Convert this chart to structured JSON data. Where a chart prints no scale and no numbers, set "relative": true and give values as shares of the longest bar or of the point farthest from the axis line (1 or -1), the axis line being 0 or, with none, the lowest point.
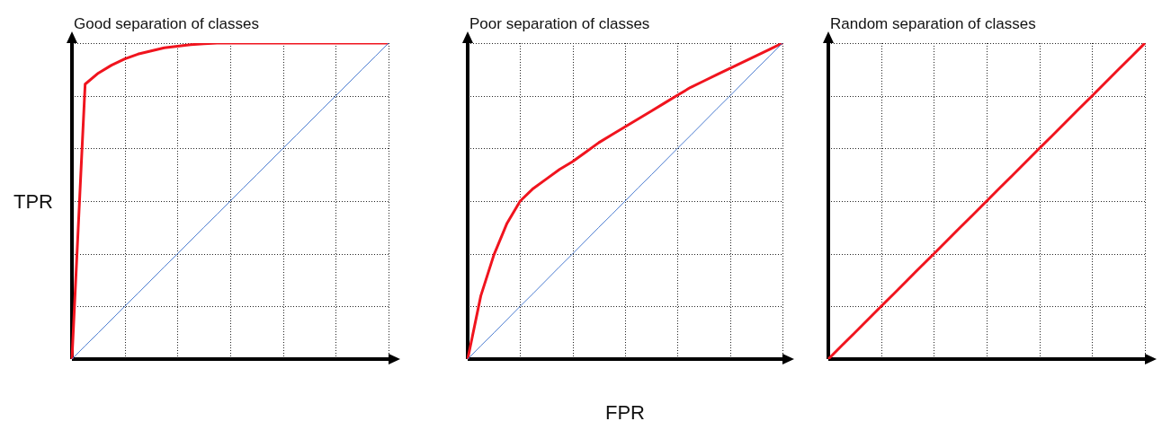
{
  "chart_data": [
    {
      "type": "line",
      "title": "Good separation of classes",
      "ylabel": "TPR",
      "relative": true,
      "grid": true,
      "marker": "none",
      "categories": [
        null,
        null,
        null,
        null,
        null,
        null,
        null,
        null,
        null,
        null,
        null,
        null,
        null,
        null,
        null,
        null,
        null,
        null,
        null,
        null,
        null,
        null,
        null,
        null,
        null
      ],
      "series": [
        {
          "color": "#f0141e",
          "values": [
            0,
            0.87,
            0.905,
            0.93,
            0.95,
            0.965,
            0.975,
            0.985,
            0.99,
            0.995,
            0.998,
            1,
            1,
            1,
            1,
            1,
            1,
            1,
            1,
            1,
            1,
            1,
            1,
            1,
            1
          ]
        },
        {
          "color": "#4a7bd0",
          "values": [
            0,
            0.042,
            0.083,
            0.125,
            0.167,
            0.208,
            0.25,
            0.292,
            0.333,
            0.375,
            0.417,
            0.458,
            0.5,
            0.542,
            0.583,
            0.625,
            0.667,
            0.708,
            0.75,
            0.792,
            0.833,
            0.875,
            0.917,
            0.958,
            1
          ]
        }
      ]
    },
    {
      "type": "line",
      "title": "Poor separation of classes",
      "xlabel": "FPR",
      "relative": true,
      "grid": true,
      "marker": "none",
      "categories": [
        null,
        null,
        null,
        null,
        null,
        null,
        null,
        null,
        null,
        null,
        null,
        null,
        null,
        null,
        null,
        null,
        null,
        null,
        null,
        null,
        null,
        null,
        null,
        null,
        null
      ],
      "series": [
        {
          "color": "#f0141e",
          "values": [
            0,
            0.2,
            0.33,
            0.43,
            0.5,
            0.54,
            0.57,
            0.6,
            0.625,
            0.655,
            0.685,
            0.71,
            0.735,
            0.76,
            0.785,
            0.81,
            0.835,
            0.86,
            0.88,
            0.9,
            0.92,
            0.94,
            0.96,
            0.98,
            1
          ]
        },
        {
          "color": "#4a7bd0",
          "values": [
            0,
            0.042,
            0.083,
            0.125,
            0.167,
            0.208,
            0.25,
            0.292,
            0.333,
            0.375,
            0.417,
            0.458,
            0.5,
            0.542,
            0.583,
            0.625,
            0.667,
            0.708,
            0.75,
            0.792,
            0.833,
            0.875,
            0.917,
            0.958,
            1
          ]
        }
      ]
    },
    {
      "type": "line",
      "title": "Random separation of classes",
      "relative": true,
      "grid": true,
      "marker": "none",
      "categories": [
        null,
        null,
        null,
        null,
        null,
        null,
        null,
        null,
        null,
        null,
        null,
        null,
        null,
        null,
        null,
        null,
        null,
        null,
        null,
        null,
        null,
        null,
        null,
        null,
        null
      ],
      "series": [
        {
          "color": "#f0141e",
          "values": [
            0,
            0.042,
            0.083,
            0.125,
            0.167,
            0.208,
            0.25,
            0.292,
            0.333,
            0.375,
            0.417,
            0.458,
            0.5,
            0.542,
            0.583,
            0.625,
            0.667,
            0.708,
            0.75,
            0.792,
            0.833,
            0.875,
            0.917,
            0.958,
            1
          ]
        }
      ]
    }
  ]
}
